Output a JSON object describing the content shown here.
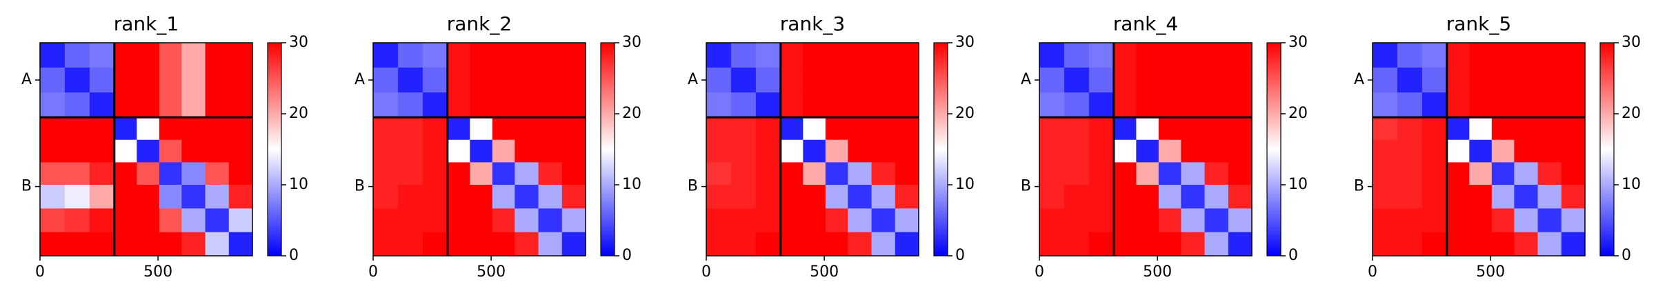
{
  "chart_data": [
    {
      "type": "heatmap",
      "title": "rank_1",
      "cmap": "bwr",
      "xlim": [
        0,
        900
      ],
      "ylim": [
        900,
        0
      ],
      "xticks": [
        0,
        500
      ],
      "yticks": [
        {
          "value": 157.5,
          "label": "A"
        },
        {
          "value": 607.5,
          "label": "B"
        }
      ],
      "bins": [
        0,
        105,
        210,
        315,
        410,
        505,
        600,
        700,
        800,
        900
      ],
      "boundaries": [
        315
      ],
      "clim": [
        0,
        30
      ],
      "cticks": [
        0,
        10,
        20,
        30
      ],
      "values": [
        [
          2,
          6,
          7,
          30,
          30,
          25,
          20,
          30,
          30
        ],
        [
          6,
          2,
          6,
          30,
          30,
          25,
          20,
          30,
          30
        ],
        [
          7,
          6,
          2,
          30,
          30,
          25,
          20,
          30,
          30
        ],
        [
          30,
          30,
          30,
          2,
          15,
          30,
          30,
          30,
          30
        ],
        [
          30,
          30,
          30,
          15,
          2,
          25,
          30,
          30,
          30
        ],
        [
          25,
          25,
          28,
          30,
          25,
          3,
          8,
          25,
          30
        ],
        [
          12,
          14,
          20,
          30,
          30,
          8,
          3,
          10,
          28
        ],
        [
          26,
          27,
          29,
          30,
          30,
          25,
          10,
          3,
          12
        ],
        [
          30,
          30,
          30,
          30,
          30,
          30,
          28,
          12,
          2
        ]
      ]
    },
    {
      "type": "heatmap",
      "title": "rank_2",
      "cmap": "bwr",
      "xlim": [
        0,
        900
      ],
      "ylim": [
        900,
        0
      ],
      "xticks": [
        0,
        500
      ],
      "yticks": [
        {
          "value": 157.5,
          "label": "A"
        },
        {
          "value": 607.5,
          "label": "B"
        }
      ],
      "bins": [
        0,
        105,
        210,
        315,
        410,
        505,
        600,
        700,
        800,
        900
      ],
      "boundaries": [
        315
      ],
      "clim": [
        0,
        30
      ],
      "cticks": [
        0,
        10,
        20,
        30
      ],
      "values": [
        [
          2,
          6,
          7,
          29,
          30,
          30,
          30,
          30,
          30
        ],
        [
          6,
          2,
          6,
          29,
          30,
          30,
          30,
          30,
          30
        ],
        [
          7,
          6,
          2,
          29,
          30,
          30,
          30,
          30,
          30
        ],
        [
          28,
          28,
          29,
          2,
          15,
          30,
          30,
          30,
          30
        ],
        [
          28,
          28,
          29,
          15,
          2,
          20,
          30,
          30,
          30
        ],
        [
          28,
          28,
          29,
          30,
          20,
          3,
          10,
          28,
          30
        ],
        [
          28,
          29,
          29,
          30,
          30,
          10,
          3,
          10,
          28
        ],
        [
          29,
          29,
          29,
          30,
          30,
          28,
          10,
          3,
          10
        ],
        [
          29,
          29,
          30,
          30,
          30,
          30,
          28,
          10,
          2
        ]
      ]
    },
    {
      "type": "heatmap",
      "title": "rank_3",
      "cmap": "bwr",
      "xlim": [
        0,
        900
      ],
      "ylim": [
        900,
        0
      ],
      "xticks": [
        0,
        500
      ],
      "yticks": [
        {
          "value": 157.5,
          "label": "A"
        },
        {
          "value": 607.5,
          "label": "B"
        }
      ],
      "bins": [
        0,
        105,
        210,
        315,
        410,
        505,
        600,
        700,
        800,
        900
      ],
      "boundaries": [
        315
      ],
      "clim": [
        0,
        30
      ],
      "cticks": [
        0,
        10,
        20,
        30
      ],
      "values": [
        [
          2,
          6,
          7,
          29,
          30,
          30,
          30,
          30,
          30
        ],
        [
          6,
          2,
          6,
          29,
          30,
          30,
          30,
          30,
          30
        ],
        [
          7,
          6,
          2,
          29,
          30,
          30,
          30,
          30,
          30
        ],
        [
          28,
          28,
          29,
          2,
          15,
          30,
          30,
          30,
          30
        ],
        [
          28,
          28,
          29,
          15,
          2,
          20,
          30,
          30,
          30
        ],
        [
          27,
          28,
          29,
          30,
          20,
          3,
          10,
          28,
          30
        ],
        [
          28,
          28,
          29,
          30,
          30,
          10,
          3,
          10,
          28
        ],
        [
          29,
          29,
          29,
          30,
          30,
          28,
          10,
          3,
          10
        ],
        [
          29,
          29,
          30,
          30,
          30,
          30,
          28,
          10,
          2
        ]
      ]
    },
    {
      "type": "heatmap",
      "title": "rank_4",
      "cmap": "bwr",
      "xlim": [
        0,
        900
      ],
      "ylim": [
        900,
        0
      ],
      "xticks": [
        0,
        500
      ],
      "yticks": [
        {
          "value": 157.5,
          "label": "A"
        },
        {
          "value": 607.5,
          "label": "B"
        }
      ],
      "bins": [
        0,
        105,
        210,
        315,
        410,
        505,
        600,
        700,
        800,
        900
      ],
      "boundaries": [
        315
      ],
      "clim": [
        0,
        30
      ],
      "cticks": [
        0,
        10,
        20,
        30
      ],
      "values": [
        [
          2,
          6,
          7,
          29,
          30,
          30,
          30,
          30,
          30
        ],
        [
          6,
          2,
          6,
          29,
          30,
          30,
          30,
          30,
          30
        ],
        [
          7,
          6,
          2,
          29,
          30,
          30,
          30,
          30,
          30
        ],
        [
          28,
          28,
          29,
          2,
          15,
          30,
          30,
          30,
          30
        ],
        [
          28,
          28,
          29,
          15,
          2,
          20,
          30,
          30,
          30
        ],
        [
          28,
          28,
          29,
          30,
          20,
          3,
          10,
          28,
          30
        ],
        [
          28,
          29,
          29,
          30,
          30,
          10,
          3,
          10,
          28
        ],
        [
          29,
          29,
          29,
          30,
          30,
          28,
          10,
          3,
          10
        ],
        [
          29,
          29,
          30,
          30,
          30,
          30,
          28,
          10,
          2
        ]
      ]
    },
    {
      "type": "heatmap",
      "title": "rank_5",
      "cmap": "bwr",
      "xlim": [
        0,
        900
      ],
      "ylim": [
        900,
        0
      ],
      "xticks": [
        0,
        500
      ],
      "yticks": [
        {
          "value": 157.5,
          "label": "A"
        },
        {
          "value": 607.5,
          "label": "B"
        }
      ],
      "bins": [
        0,
        105,
        210,
        315,
        410,
        505,
        600,
        700,
        800,
        900
      ],
      "boundaries": [
        315
      ],
      "clim": [
        0,
        30
      ],
      "cticks": [
        0,
        10,
        20,
        30
      ],
      "values": [
        [
          2,
          6,
          7,
          29,
          30,
          30,
          30,
          30,
          30
        ],
        [
          6,
          2,
          6,
          29,
          30,
          30,
          30,
          30,
          30
        ],
        [
          7,
          6,
          2,
          29,
          30,
          30,
          30,
          30,
          30
        ],
        [
          27,
          28,
          29,
          2,
          15,
          30,
          30,
          30,
          30
        ],
        [
          28,
          28,
          29,
          15,
          2,
          20,
          30,
          30,
          30
        ],
        [
          28,
          28,
          29,
          30,
          20,
          3,
          10,
          28,
          30
        ],
        [
          28,
          28,
          29,
          30,
          30,
          10,
          3,
          10,
          28
        ],
        [
          29,
          29,
          29,
          30,
          30,
          28,
          10,
          3,
          10
        ],
        [
          29,
          29,
          30,
          30,
          30,
          30,
          28,
          10,
          2
        ]
      ]
    }
  ]
}
